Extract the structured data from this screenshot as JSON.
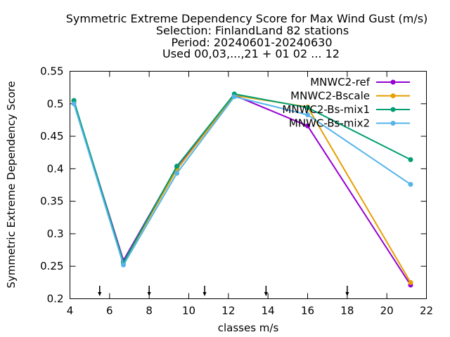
{
  "chart_data": {
    "type": "line",
    "title_lines": [
      "Symmetric Extreme Dependency Score  for Max Wind Gust (m/s)",
      "Selection: FinlandLand     82 stations",
      "Period: 20240601-20240630",
      "Used 00,03,...,21 + 01 02 ... 12"
    ],
    "xlabel": "classes m/s",
    "ylabel": "Symmetric Extreme Dependency Score",
    "xlim": [
      4,
      22
    ],
    "ylim": [
      0.2,
      0.55
    ],
    "x_ticks": [
      4,
      6,
      8,
      10,
      12,
      14,
      16,
      18,
      20,
      22
    ],
    "y_ticks": [
      0.2,
      0.25,
      0.3,
      0.35,
      0.4,
      0.45,
      0.5,
      0.55
    ],
    "x_tick_labels": [
      "4",
      "6",
      "8",
      "10",
      "12",
      "14",
      "16",
      "18",
      "20",
      "22"
    ],
    "y_tick_labels": [
      "0.2",
      "0.25",
      "0.3",
      "0.35",
      "0.4",
      "0.45",
      "0.5",
      "0.55"
    ],
    "class_limit_arrows": [
      5.5,
      8,
      10.8,
      13.9,
      18
    ],
    "legend_position": "top-right",
    "grid": false,
    "series": [
      {
        "name": "MNWC2-ref",
        "color": "#9400d3",
        "x": [
          4.2,
          6.7,
          9.4,
          12.3,
          16.0,
          21.2
        ],
        "y": [
          0.503,
          0.259,
          0.403,
          0.513,
          0.466,
          0.221
        ]
      },
      {
        "name": "MNWC2-Bscale",
        "color": "#e69f00",
        "x": [
          4.2,
          6.7,
          9.4,
          12.3,
          16.0,
          21.2
        ],
        "y": [
          0.503,
          0.256,
          0.399,
          0.513,
          0.495,
          0.225
        ]
      },
      {
        "name": "MNWC2-Bs-mix1",
        "color": "#009e73",
        "x": [
          4.2,
          6.7,
          9.4,
          12.3,
          16.0,
          21.2
        ],
        "y": [
          0.505,
          0.256,
          0.404,
          0.515,
          0.494,
          0.414
        ]
      },
      {
        "name": "MNWC-Bs-mix2",
        "color": "#56b4e9",
        "x": [
          4.2,
          6.7,
          9.4,
          12.3,
          16.0,
          21.2
        ],
        "y": [
          0.5,
          0.252,
          0.393,
          0.511,
          0.483,
          0.376
        ]
      }
    ]
  }
}
